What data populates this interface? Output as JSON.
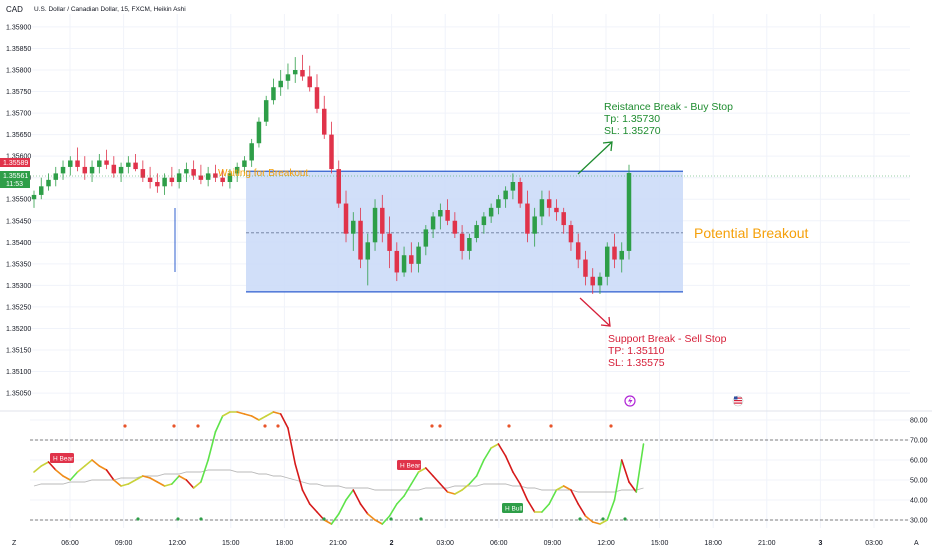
{
  "header": {
    "currency": "CAD",
    "pair": "U.S. Dollar / Canadian Dollar, 15, FXCM, Heikin Ashi"
  },
  "price_axis": {
    "labels": [
      "1.35900",
      "1.35850",
      "1.35800",
      "1.35750",
      "1.35700",
      "1.35650",
      "1.35600",
      "1.35550",
      "1.35500",
      "1.35450",
      "1.35400",
      "1.35350",
      "1.35300",
      "1.35250",
      "1.35200",
      "1.35150",
      "1.35100",
      "1.35050"
    ],
    "current_price_red": "1.35589",
    "current_price_green": "1.35561",
    "countdown": "11:53"
  },
  "indicator_axis": {
    "labels": [
      "80.00",
      "70.00",
      "60.00",
      "50.00",
      "40.00",
      "30.00"
    ]
  },
  "time_axis": {
    "labels": [
      "06:00",
      "09:00",
      "12:00",
      "15:00",
      "18:00",
      "21:00",
      "2",
      "03:00",
      "06:00",
      "09:00",
      "12:00",
      "15:00",
      "18:00",
      "21:00",
      "3",
      "03:00"
    ],
    "left_marker": "Z",
    "right_marker": "A"
  },
  "annotations": {
    "waiting": "Waiting for Breakout",
    "potential": "Potential Breakout",
    "resistance_title": "Reistance Break - Buy Stop",
    "resistance_tp": "Tp: 1.35730",
    "resistance_sl": "SL: 1.35270",
    "support_title": "Support Break - Sell Stop",
    "support_tp": "TP: 1.35110",
    "support_sl": "SL: 1.35575",
    "h_bear_1": "H Bear",
    "h_bear_2": "H Bear",
    "h_bull": "H Bull"
  },
  "colors": {
    "up": "#26a69a",
    "up_candle": "#2e9e48",
    "down": "#e0334a",
    "range_fill": "#c9d9f8",
    "range_border": "#2f5fcf",
    "annotation_green": "#1e8c2f",
    "annotation_red": "#d6203a",
    "annotation_orange": "#f5a00a"
  },
  "chart_data": [
    {
      "type": "candlestick",
      "title": "U.S. Dollar / Canadian Dollar, 15, FXCM, Heikin Ashi",
      "ylim": [
        1.3502,
        1.3593
      ],
      "support": 1.35285,
      "resistance": 1.35565,
      "midline": 1.35422,
      "candles": [
        [
          1.355,
          1.3552,
          1.3548,
          1.3551
        ],
        [
          1.3551,
          1.3555,
          1.355,
          1.3553
        ],
        [
          1.3553,
          1.3556,
          1.3552,
          1.35545
        ],
        [
          1.35545,
          1.35575,
          1.3553,
          1.3556
        ],
        [
          1.3556,
          1.3559,
          1.35545,
          1.35575
        ],
        [
          1.35575,
          1.356,
          1.35555,
          1.3559
        ],
        [
          1.3559,
          1.3562,
          1.35565,
          1.35575
        ],
        [
          1.35575,
          1.356,
          1.35545,
          1.3556
        ],
        [
          1.3556,
          1.3559,
          1.3554,
          1.35575
        ],
        [
          1.35575,
          1.35605,
          1.3556,
          1.3559
        ],
        [
          1.3559,
          1.35615,
          1.3557,
          1.3558
        ],
        [
          1.3558,
          1.356,
          1.3555,
          1.3556
        ],
        [
          1.3556,
          1.35585,
          1.3554,
          1.35575
        ],
        [
          1.35575,
          1.356,
          1.3556,
          1.35585
        ],
        [
          1.35585,
          1.35605,
          1.35565,
          1.3557
        ],
        [
          1.3557,
          1.3559,
          1.3554,
          1.3555
        ],
        [
          1.3555,
          1.35575,
          1.35525,
          1.3554
        ],
        [
          1.3554,
          1.3556,
          1.35515,
          1.3553
        ],
        [
          1.3553,
          1.3556,
          1.3551,
          1.3555
        ],
        [
          1.3555,
          1.35575,
          1.3553,
          1.3554
        ],
        [
          1.3554,
          1.3557,
          1.35525,
          1.3556
        ],
        [
          1.3556,
          1.35585,
          1.3554,
          1.3557
        ],
        [
          1.3557,
          1.3559,
          1.35545,
          1.35555
        ],
        [
          1.35555,
          1.3558,
          1.35535,
          1.35545
        ],
        [
          1.35545,
          1.35575,
          1.3553,
          1.3556
        ],
        [
          1.3556,
          1.3558,
          1.3554,
          1.3555
        ],
        [
          1.3555,
          1.3557,
          1.3553,
          1.3554
        ],
        [
          1.3554,
          1.3557,
          1.35525,
          1.3556
        ],
        [
          1.3556,
          1.35585,
          1.3554,
          1.35575
        ],
        [
          1.35575,
          1.356,
          1.3556,
          1.3559
        ],
        [
          1.3559,
          1.3564,
          1.35575,
          1.3563
        ],
        [
          1.3563,
          1.3569,
          1.3562,
          1.3568
        ],
        [
          1.3568,
          1.3574,
          1.3567,
          1.3573
        ],
        [
          1.3573,
          1.3578,
          1.3572,
          1.3576
        ],
        [
          1.3576,
          1.358,
          1.3574,
          1.35775
        ],
        [
          1.35775,
          1.35815,
          1.35755,
          1.3579
        ],
        [
          1.3579,
          1.3583,
          1.3577,
          1.358
        ],
        [
          1.358,
          1.35835,
          1.35775,
          1.35785
        ],
        [
          1.35785,
          1.3581,
          1.3575,
          1.3576
        ],
        [
          1.3576,
          1.3579,
          1.357,
          1.3571
        ],
        [
          1.3571,
          1.3574,
          1.3564,
          1.3565
        ],
        [
          1.3565,
          1.3568,
          1.3556,
          1.3557
        ],
        [
          1.3557,
          1.3559,
          1.3548,
          1.3549
        ],
        [
          1.3549,
          1.3552,
          1.354,
          1.3542
        ],
        [
          1.3542,
          1.3547,
          1.3538,
          1.3545
        ],
        [
          1.3545,
          1.3548,
          1.3534,
          1.3536
        ],
        [
          1.3536,
          1.3542,
          1.353,
          1.354
        ],
        [
          1.354,
          1.355,
          1.3538,
          1.3548
        ],
        [
          1.3548,
          1.3551,
          1.354,
          1.3542
        ],
        [
          1.3542,
          1.3546,
          1.3534,
          1.3538
        ],
        [
          1.3538,
          1.354,
          1.3531,
          1.3533
        ],
        [
          1.3533,
          1.3539,
          1.3532,
          1.3537
        ],
        [
          1.3537,
          1.354,
          1.3533,
          1.3535
        ],
        [
          1.3535,
          1.354,
          1.3533,
          1.3539
        ],
        [
          1.3539,
          1.3544,
          1.3537,
          1.3543
        ],
        [
          1.3543,
          1.3547,
          1.3541,
          1.3546
        ],
        [
          1.3546,
          1.3549,
          1.3543,
          1.35475
        ],
        [
          1.35475,
          1.355,
          1.3544,
          1.3545
        ],
        [
          1.3545,
          1.3547,
          1.3541,
          1.3542
        ],
        [
          1.3542,
          1.3544,
          1.3536,
          1.3538
        ],
        [
          1.3538,
          1.3542,
          1.3536,
          1.3541
        ],
        [
          1.3541,
          1.3545,
          1.354,
          1.3544
        ],
        [
          1.3544,
          1.3547,
          1.3542,
          1.3546
        ],
        [
          1.3546,
          1.3549,
          1.35445,
          1.3548
        ],
        [
          1.3548,
          1.3551,
          1.35465,
          1.355
        ],
        [
          1.355,
          1.3553,
          1.3548,
          1.3552
        ],
        [
          1.3552,
          1.3556,
          1.355,
          1.3554
        ],
        [
          1.3554,
          1.3555,
          1.3548,
          1.3549
        ],
        [
          1.3549,
          1.3552,
          1.354,
          1.3542
        ],
        [
          1.3542,
          1.3548,
          1.3539,
          1.3546
        ],
        [
          1.3546,
          1.3552,
          1.3544,
          1.355
        ],
        [
          1.355,
          1.3552,
          1.3546,
          1.3548
        ],
        [
          1.3548,
          1.355,
          1.3545,
          1.3547
        ],
        [
          1.3547,
          1.3548,
          1.3542,
          1.3544
        ],
        [
          1.3544,
          1.3545,
          1.3538,
          1.354
        ],
        [
          1.354,
          1.3542,
          1.3534,
          1.3536
        ],
        [
          1.3536,
          1.3538,
          1.353,
          1.3532
        ],
        [
          1.3532,
          1.3534,
          1.3528,
          1.353
        ],
        [
          1.353,
          1.3533,
          1.3528,
          1.3532
        ],
        [
          1.3532,
          1.354,
          1.353,
          1.3539
        ],
        [
          1.3539,
          1.3542,
          1.3534,
          1.3536
        ],
        [
          1.3536,
          1.354,
          1.3533,
          1.3538
        ],
        [
          1.3538,
          1.3558,
          1.3536,
          1.35561
        ]
      ]
    },
    {
      "type": "line",
      "title": "",
      "ylim": [
        26,
        84
      ],
      "levels": [
        70,
        30
      ],
      "series": [
        {
          "values": [
            54,
            57,
            59,
            55,
            52,
            50,
            54,
            57,
            60,
            57,
            55,
            50,
            47,
            48,
            50,
            52,
            51,
            49,
            47,
            48,
            52,
            50,
            46,
            49,
            60,
            74,
            82,
            84,
            84,
            83,
            82,
            80,
            82,
            84,
            83,
            76,
            58,
            45,
            38,
            34,
            30,
            28,
            33,
            40,
            45,
            38,
            33,
            30,
            28,
            32,
            38,
            42,
            48,
            54,
            56,
            52,
            48,
            44,
            43,
            45,
            48,
            52,
            60,
            66,
            68,
            62,
            54,
            48,
            40,
            34,
            34,
            38,
            45,
            47,
            45,
            38,
            32,
            29,
            28,
            30,
            40,
            60,
            49,
            44,
            68
          ]
        },
        {
          "values": [
            47,
            48,
            48,
            48,
            48,
            49,
            49,
            49,
            50,
            50,
            50,
            50,
            51,
            51,
            51,
            52,
            52,
            52,
            53,
            53,
            53,
            54,
            54,
            54,
            55,
            55,
            55,
            55,
            54,
            54,
            54,
            53,
            53,
            52,
            52,
            51,
            50,
            49,
            48,
            48,
            47,
            47,
            47,
            46,
            46,
            46,
            46,
            45,
            45,
            45,
            45,
            45,
            45,
            45,
            46,
            46,
            46,
            46,
            47,
            47,
            47,
            47,
            48,
            48,
            48,
            48,
            47,
            47,
            46,
            46,
            45,
            45,
            45,
            45,
            45,
            44,
            44,
            44,
            44,
            44,
            44,
            45,
            45,
            45,
            46
          ]
        }
      ]
    }
  ]
}
